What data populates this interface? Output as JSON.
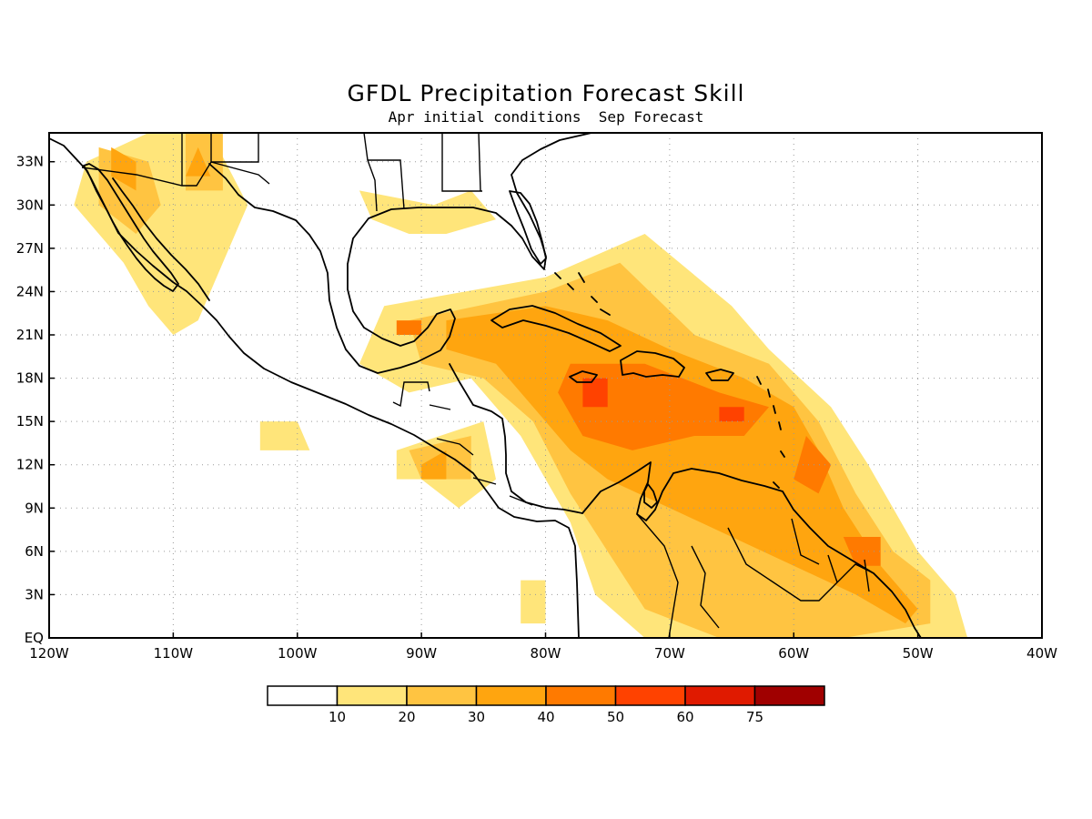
{
  "title": "GFDL Precipitation Forecast Skill",
  "subtitle": "Apr initial conditions  Sep Forecast",
  "map": {
    "projection": "lat-lon",
    "lon_range": [
      -120,
      -40
    ],
    "lat_range": [
      0,
      35
    ],
    "lon_ticks": [
      {
        "value": -120,
        "label": "120W"
      },
      {
        "value": -110,
        "label": "110W"
      },
      {
        "value": -100,
        "label": "100W"
      },
      {
        "value": -90,
        "label": "90W"
      },
      {
        "value": -80,
        "label": "80W"
      },
      {
        "value": -70,
        "label": "70W"
      },
      {
        "value": -60,
        "label": "60W"
      },
      {
        "value": -50,
        "label": "50W"
      },
      {
        "value": -40,
        "label": "40W"
      }
    ],
    "lat_ticks": [
      {
        "value": 0,
        "label": "EQ"
      },
      {
        "value": 3,
        "label": "3N"
      },
      {
        "value": 6,
        "label": "6N"
      },
      {
        "value": 9,
        "label": "9N"
      },
      {
        "value": 12,
        "label": "12N"
      },
      {
        "value": 15,
        "label": "15N"
      },
      {
        "value": 18,
        "label": "18N"
      },
      {
        "value": 21,
        "label": "21N"
      },
      {
        "value": 24,
        "label": "24N"
      },
      {
        "value": 27,
        "label": "27N"
      },
      {
        "value": 30,
        "label": "30N"
      },
      {
        "value": 33,
        "label": "33N"
      }
    ],
    "grid": true
  },
  "colorbar": {
    "colors": [
      "#ffffff",
      "#ffe57a",
      "#ffc441",
      "#ffa50f",
      "#ff7a00",
      "#ff4200",
      "#e01a00",
      "#a00000"
    ],
    "labels": [
      "10",
      "20",
      "30",
      "40",
      "50",
      "60",
      "75"
    ]
  },
  "skill_regions": [
    {
      "level": 1,
      "polys": [
        [
          [
            -117,
            33
          ],
          [
            -112,
            35
          ],
          [
            -107,
            35
          ],
          [
            -104,
            30
          ],
          [
            -106,
            26
          ],
          [
            -108,
            22
          ],
          [
            -110,
            21
          ],
          [
            -112,
            23
          ],
          [
            -114,
            26
          ],
          [
            -118,
            30
          ]
        ],
        [
          [
            -93,
            23
          ],
          [
            -80,
            25
          ],
          [
            -72,
            28
          ],
          [
            -65,
            23
          ],
          [
            -62,
            20
          ],
          [
            -57,
            16
          ],
          [
            -54,
            12
          ],
          [
            -50,
            6
          ],
          [
            -47,
            3
          ],
          [
            -46,
            0
          ],
          [
            -60,
            0
          ],
          [
            -72,
            0
          ],
          [
            -76,
            3
          ],
          [
            -78,
            8
          ],
          [
            -82,
            14
          ],
          [
            -86,
            18
          ],
          [
            -91,
            17
          ],
          [
            -95,
            19
          ]
        ],
        [
          [
            -103,
            15
          ],
          [
            -100,
            15
          ],
          [
            -99,
            13
          ],
          [
            -103,
            13
          ]
        ],
        [
          [
            -92,
            13
          ],
          [
            -85,
            15
          ],
          [
            -84,
            11
          ],
          [
            -87,
            9
          ],
          [
            -90,
            11
          ],
          [
            -92,
            11
          ]
        ],
        [
          [
            -95,
            31
          ],
          [
            -89,
            30
          ],
          [
            -86,
            31
          ],
          [
            -84,
            29
          ],
          [
            -88,
            28
          ],
          [
            -91,
            28
          ],
          [
            -94,
            29
          ]
        ],
        [
          [
            -82,
            4
          ],
          [
            -80,
            4
          ],
          [
            -80,
            1
          ],
          [
            -82,
            1
          ]
        ]
      ]
    },
    {
      "level": 2,
      "polys": [
        [
          [
            -116,
            34
          ],
          [
            -112,
            33
          ],
          [
            -111,
            30
          ],
          [
            -113,
            28
          ],
          [
            -116,
            30
          ]
        ],
        [
          [
            -109,
            35
          ],
          [
            -106,
            35
          ],
          [
            -106,
            31
          ],
          [
            -109,
            31
          ]
        ],
        [
          [
            -91,
            22
          ],
          [
            -80,
            24
          ],
          [
            -74,
            26
          ],
          [
            -68,
            21
          ],
          [
            -62,
            19
          ],
          [
            -58,
            15
          ],
          [
            -55,
            10
          ],
          [
            -52,
            6
          ],
          [
            -49,
            4
          ],
          [
            -49,
            1
          ],
          [
            -56,
            0
          ],
          [
            -66,
            0
          ],
          [
            -72,
            2
          ],
          [
            -75,
            6
          ],
          [
            -78,
            10
          ],
          [
            -81,
            15
          ],
          [
            -85,
            18
          ],
          [
            -90,
            19
          ]
        ],
        [
          [
            -91,
            13
          ],
          [
            -86,
            14
          ],
          [
            -86,
            11
          ],
          [
            -90,
            11
          ]
        ]
      ]
    },
    {
      "level": 3,
      "polys": [
        [
          [
            -115,
            34
          ],
          [
            -113,
            33
          ],
          [
            -113,
            31
          ],
          [
            -115,
            32
          ]
        ],
        [
          [
            -108,
            34
          ],
          [
            -107,
            32
          ],
          [
            -109,
            32
          ]
        ],
        [
          [
            -88,
            22
          ],
          [
            -80,
            23
          ],
          [
            -75,
            22
          ],
          [
            -70,
            20
          ],
          [
            -64,
            18
          ],
          [
            -60,
            16
          ],
          [
            -58,
            13
          ],
          [
            -56,
            9
          ],
          [
            -53,
            5
          ],
          [
            -50,
            2
          ],
          [
            -51,
            1
          ],
          [
            -55,
            3
          ],
          [
            -60,
            5
          ],
          [
            -65,
            7
          ],
          [
            -70,
            9
          ],
          [
            -75,
            11
          ],
          [
            -78,
            13
          ],
          [
            -81,
            16
          ],
          [
            -84,
            19
          ],
          [
            -88,
            20
          ]
        ],
        [
          [
            -90,
            12
          ],
          [
            -88,
            13
          ],
          [
            -88,
            11
          ],
          [
            -90,
            11
          ]
        ]
      ]
    },
    {
      "level": 4,
      "polys": [
        [
          [
            -78,
            19
          ],
          [
            -72,
            19
          ],
          [
            -66,
            17
          ],
          [
            -62,
            16
          ],
          [
            -64,
            14
          ],
          [
            -68,
            14
          ],
          [
            -73,
            13
          ],
          [
            -77,
            14
          ],
          [
            -79,
            17
          ]
        ],
        [
          [
            -59,
            14
          ],
          [
            -57,
            12
          ],
          [
            -58,
            10
          ],
          [
            -60,
            11
          ]
        ],
        [
          [
            -56,
            7
          ],
          [
            -53,
            7
          ],
          [
            -53,
            5
          ],
          [
            -55,
            5
          ]
        ],
        [
          [
            -92,
            22
          ],
          [
            -90,
            22
          ],
          [
            -90,
            21
          ],
          [
            -92,
            21
          ]
        ]
      ]
    },
    {
      "level": 5,
      "polys": [
        [
          [
            -77,
            18
          ],
          [
            -75,
            18
          ],
          [
            -75,
            16
          ],
          [
            -77,
            16
          ]
        ],
        [
          [
            -66,
            16
          ],
          [
            -64,
            16
          ],
          [
            -64,
            15
          ],
          [
            -66,
            15
          ]
        ]
      ]
    }
  ]
}
